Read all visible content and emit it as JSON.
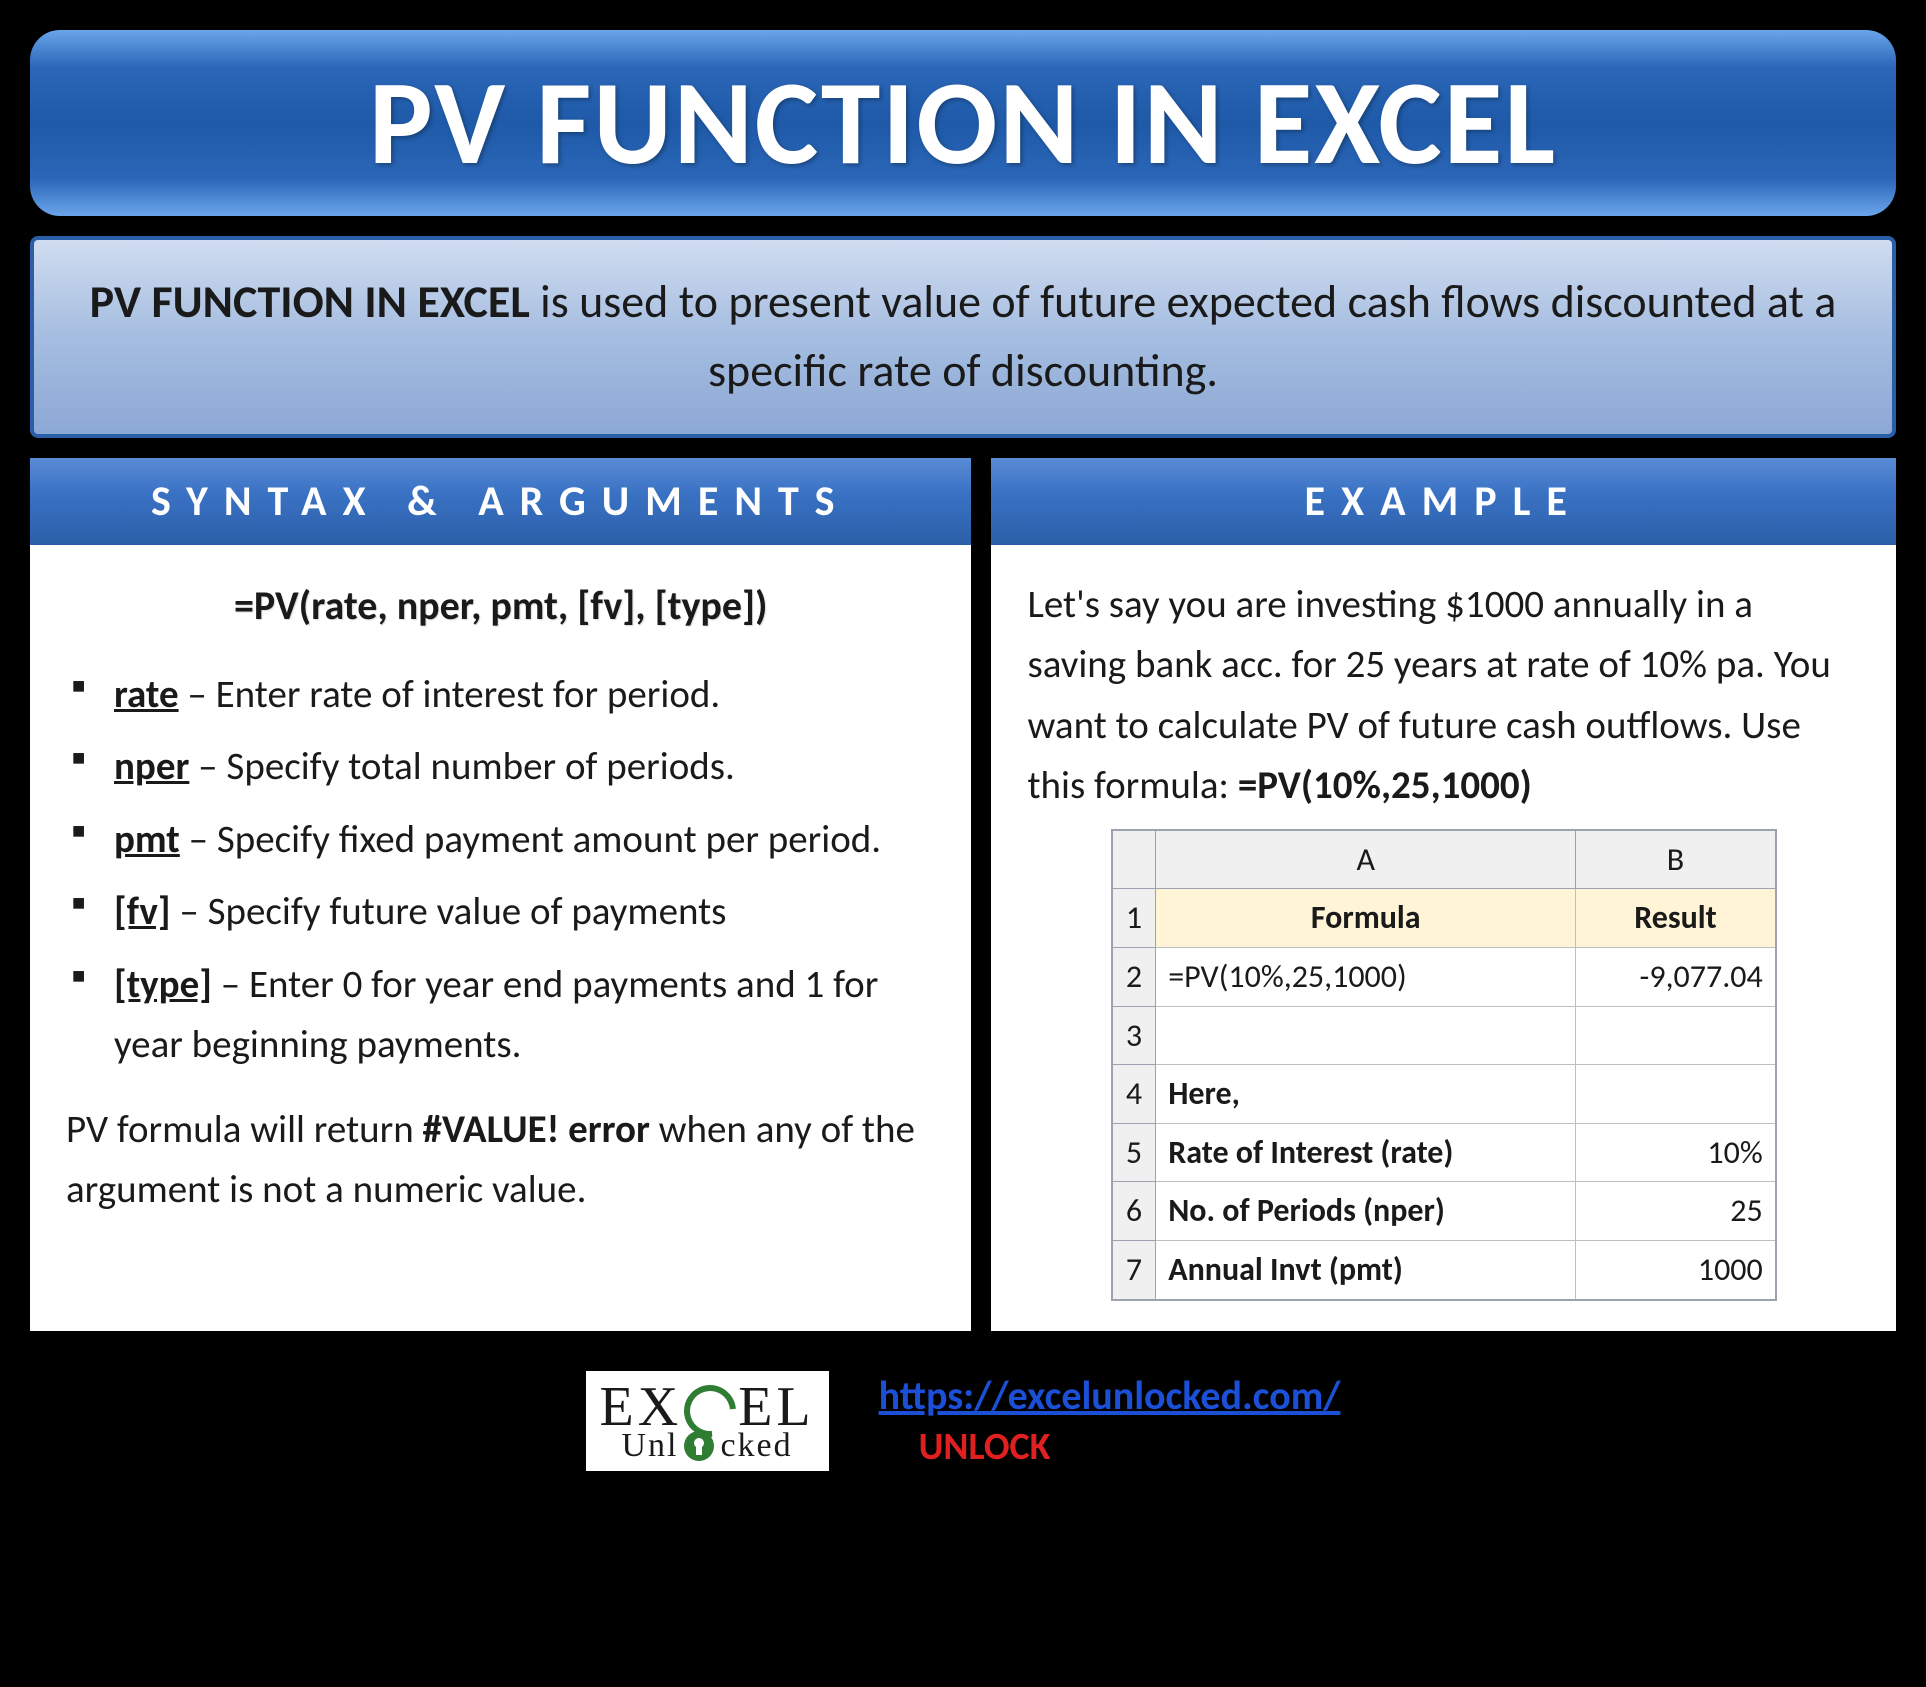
{
  "title": "PV FUNCTION IN EXCEL",
  "subtitle": {
    "bold": "PV FUNCTION IN EXCEL",
    "rest": " is used to present value of future expected cash flows discounted at a specific rate of discounting."
  },
  "left": {
    "header": "SYNTAX & ARGUMENTS",
    "syntax": "=PV(rate, nper, pmt, [fv], [type])",
    "args": [
      {
        "name": "rate",
        "desc": " – Enter rate of interest for period."
      },
      {
        "name": "nper",
        "desc": " – Specify total number of periods."
      },
      {
        "name": "pmt",
        "desc": " – Specify fixed payment amount per period."
      },
      {
        "name": "[fv]",
        "desc": " – Specify future value of payments"
      },
      {
        "name": "[type]",
        "desc": " – Enter 0 for year end payments and 1 for year beginning payments."
      }
    ],
    "note_pre": "PV formula will return ",
    "note_bold": "#VALUE! error",
    "note_post": " when any of the argument is not a numeric value."
  },
  "right": {
    "header": "EXAMPLE",
    "text_pre": "Let's say you are investing $1000 annually in a saving bank acc. for 25 years at rate of 10% pa. You want to calculate PV of future cash outflows. Use this formula: ",
    "text_bold": "=PV(10%,25,1000)",
    "table": {
      "colA": "A",
      "colB": "B",
      "rows": {
        "r1a": "Formula",
        "r1b": "Result",
        "r2a": "=PV(10%,25,1000)",
        "r2b": "-9,077.04",
        "r3a": "",
        "r3b": "",
        "r4a": "Here,",
        "r4b": "",
        "r5a": "Rate of Interest (rate)",
        "r5b": "10%",
        "r6a": "No. of Periods (nper)",
        "r6b": "25",
        "r7a": "Annual Invt (pmt)",
        "r7b": "1000"
      },
      "rownums": {
        "n1": "1",
        "n2": "2",
        "n3": "3",
        "n4": "4",
        "n5": "5",
        "n6": "6",
        "n7": "7"
      }
    }
  },
  "footer": {
    "logo_top_pre": "EX",
    "logo_top_post": "EL",
    "logo_bottom_pre": "Unl",
    "logo_bottom_post": "cked",
    "url": "https://excelunlocked.com/",
    "unlock": "UNLOCK"
  },
  "colors": {
    "page_bg": "#000000",
    "title_grad_top": "#6aa5ea",
    "title_grad_mid": "#1e5aa8",
    "title_text": "#ffffff",
    "subtitle_grad_top": "#d0dcf0",
    "subtitle_grad_bottom": "#8ca8d5",
    "subtitle_border": "#2a5fa8",
    "header_grad_top": "#5a8cd6",
    "header_grad_bottom": "#2b5fa8",
    "body_bg": "#ffffff",
    "text": "#1a1a1a",
    "excel_hdr_bg": "#fff4d6",
    "excel_grid": "#9ca3af",
    "link": "#1a4fd6",
    "unlock": "#e02020",
    "logo_green": "#2e7d32"
  },
  "typography": {
    "title_pt": 90,
    "subtitle_pt": 35,
    "header_pt": 32,
    "body_pt": 29,
    "table_pt": 24,
    "footer_pt": 30
  }
}
